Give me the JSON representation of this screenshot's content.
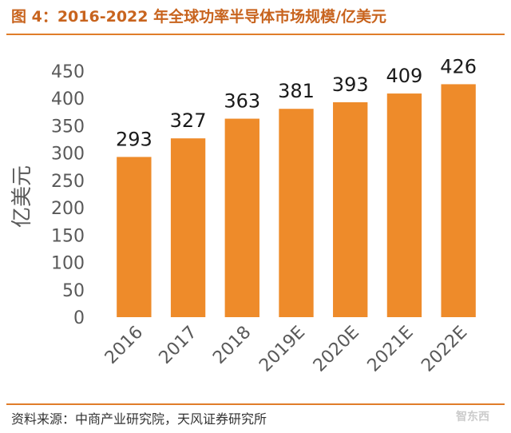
{
  "header": {
    "title": "图 4：2016-2022 年全球功率半导体市场规模/亿美元"
  },
  "footer": {
    "source": "资料来源：中商产业研究院，天风证券研究所",
    "watermark": "智东西"
  },
  "colors": {
    "accent": "#e07d2a",
    "bar": "#ee8b2a",
    "title": "#c8641e"
  },
  "chart_data": {
    "type": "bar",
    "title": "2016-2022 年全球功率半导体市场规模/亿美元",
    "xlabel": "",
    "ylabel": "亿美元",
    "categories": [
      "2016",
      "2017",
      "2018",
      "2019E",
      "2020E",
      "2021E",
      "2022E"
    ],
    "values": [
      293,
      327,
      363,
      381,
      393,
      409,
      426
    ],
    "ylim": [
      0,
      450
    ],
    "yticks": [
      0,
      50,
      100,
      150,
      200,
      250,
      300,
      350,
      400,
      450
    ],
    "data_labels": true,
    "legend": "none",
    "grid": false
  }
}
